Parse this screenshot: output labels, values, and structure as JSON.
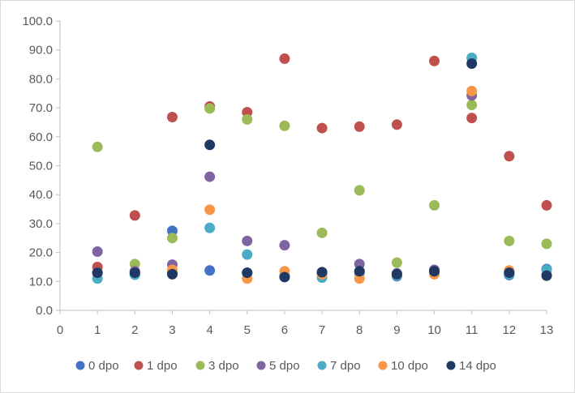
{
  "chart_data": {
    "type": "scatter",
    "title": "",
    "xlabel": "",
    "ylabel": "",
    "xlim": [
      0,
      13
    ],
    "ylim": [
      0,
      100
    ],
    "x_ticks": [
      "0",
      "1",
      "2",
      "3",
      "4",
      "5",
      "6",
      "7",
      "8",
      "9",
      "10",
      "11",
      "12",
      "13"
    ],
    "y_ticks": [
      "0.0",
      "10.0",
      "20.0",
      "30.0",
      "40.0",
      "50.0",
      "60.0",
      "70.0",
      "80.0",
      "90.0",
      "100.0"
    ],
    "grid": false,
    "legend_position": "bottom",
    "series": [
      {
        "name": "0 dpo",
        "color": "#4472c4",
        "points": [
          [
            1,
            13.0
          ],
          [
            2,
            12.5
          ],
          [
            3,
            27.5
          ],
          [
            4,
            13.8
          ],
          [
            5,
            13.0
          ],
          [
            6,
            11.8
          ],
          [
            7,
            13.0
          ],
          [
            8,
            13.5
          ],
          [
            9,
            11.8
          ],
          [
            10,
            13.5
          ],
          [
            11,
            null
          ],
          [
            12,
            12.2
          ],
          [
            13,
            14.3
          ]
        ]
      },
      {
        "name": "1 dpo",
        "color": "#c0504d",
        "points": [
          [
            1,
            15.0
          ],
          [
            2,
            32.8
          ],
          [
            3,
            66.8
          ],
          [
            4,
            70.5
          ],
          [
            5,
            68.5
          ],
          [
            6,
            87.0
          ],
          [
            7,
            63.0
          ],
          [
            8,
            63.5
          ],
          [
            9,
            64.2
          ],
          [
            10,
            86.2
          ],
          [
            11,
            66.5
          ],
          [
            12,
            53.3
          ],
          [
            13,
            36.3
          ]
        ]
      },
      {
        "name": "3 dpo",
        "color": "#9bbb59",
        "points": [
          [
            1,
            56.5
          ],
          [
            2,
            16.0
          ],
          [
            3,
            25.0
          ],
          [
            4,
            69.8
          ],
          [
            5,
            66.0
          ],
          [
            6,
            63.8
          ],
          [
            7,
            26.8
          ],
          [
            8,
            41.5
          ],
          [
            9,
            16.5
          ],
          [
            10,
            36.3
          ],
          [
            11,
            71.0
          ],
          [
            12,
            24.0
          ],
          [
            13,
            23.0
          ]
        ]
      },
      {
        "name": "5 dpo",
        "color": "#8064a2",
        "points": [
          [
            1,
            20.3
          ],
          [
            2,
            13.5
          ],
          [
            3,
            15.8
          ],
          [
            4,
            46.2
          ],
          [
            5,
            24.0
          ],
          [
            6,
            22.5
          ],
          [
            7,
            12.8
          ],
          [
            8,
            16.0
          ],
          [
            9,
            12.8
          ],
          [
            10,
            14.0
          ],
          [
            11,
            74.3
          ],
          [
            12,
            13.0
          ],
          [
            13,
            12.3
          ]
        ]
      },
      {
        "name": "7 dpo",
        "color": "#4bacc6",
        "points": [
          [
            1,
            11.0
          ],
          [
            2,
            12.3
          ],
          [
            3,
            13.0
          ],
          [
            4,
            28.5
          ],
          [
            5,
            19.3
          ],
          [
            6,
            11.8
          ],
          [
            7,
            11.3
          ],
          [
            8,
            12.8
          ],
          [
            9,
            12.0
          ],
          [
            10,
            13.0
          ],
          [
            11,
            87.3
          ],
          [
            12,
            12.5
          ],
          [
            13,
            14.0
          ]
        ]
      },
      {
        "name": "10 dpo",
        "color": "#f79646",
        "points": [
          [
            1,
            13.0
          ],
          [
            2,
            13.0
          ],
          [
            3,
            14.0
          ],
          [
            4,
            34.8
          ],
          [
            5,
            11.0
          ],
          [
            6,
            13.5
          ],
          [
            7,
            12.5
          ],
          [
            8,
            11.0
          ],
          [
            9,
            12.5
          ],
          [
            10,
            12.5
          ],
          [
            11,
            75.8
          ],
          [
            12,
            13.8
          ],
          [
            13,
            12.0
          ]
        ]
      },
      {
        "name": "14 dpo",
        "color": "#1f3864",
        "points": [
          [
            1,
            13.0
          ],
          [
            2,
            13.0
          ],
          [
            3,
            12.5
          ],
          [
            4,
            57.2
          ],
          [
            5,
            13.0
          ],
          [
            6,
            11.5
          ],
          [
            7,
            13.2
          ],
          [
            8,
            13.5
          ],
          [
            9,
            12.5
          ],
          [
            10,
            13.5
          ],
          [
            11,
            85.3
          ],
          [
            12,
            13.0
          ],
          [
            13,
            12.0
          ]
        ]
      }
    ]
  }
}
